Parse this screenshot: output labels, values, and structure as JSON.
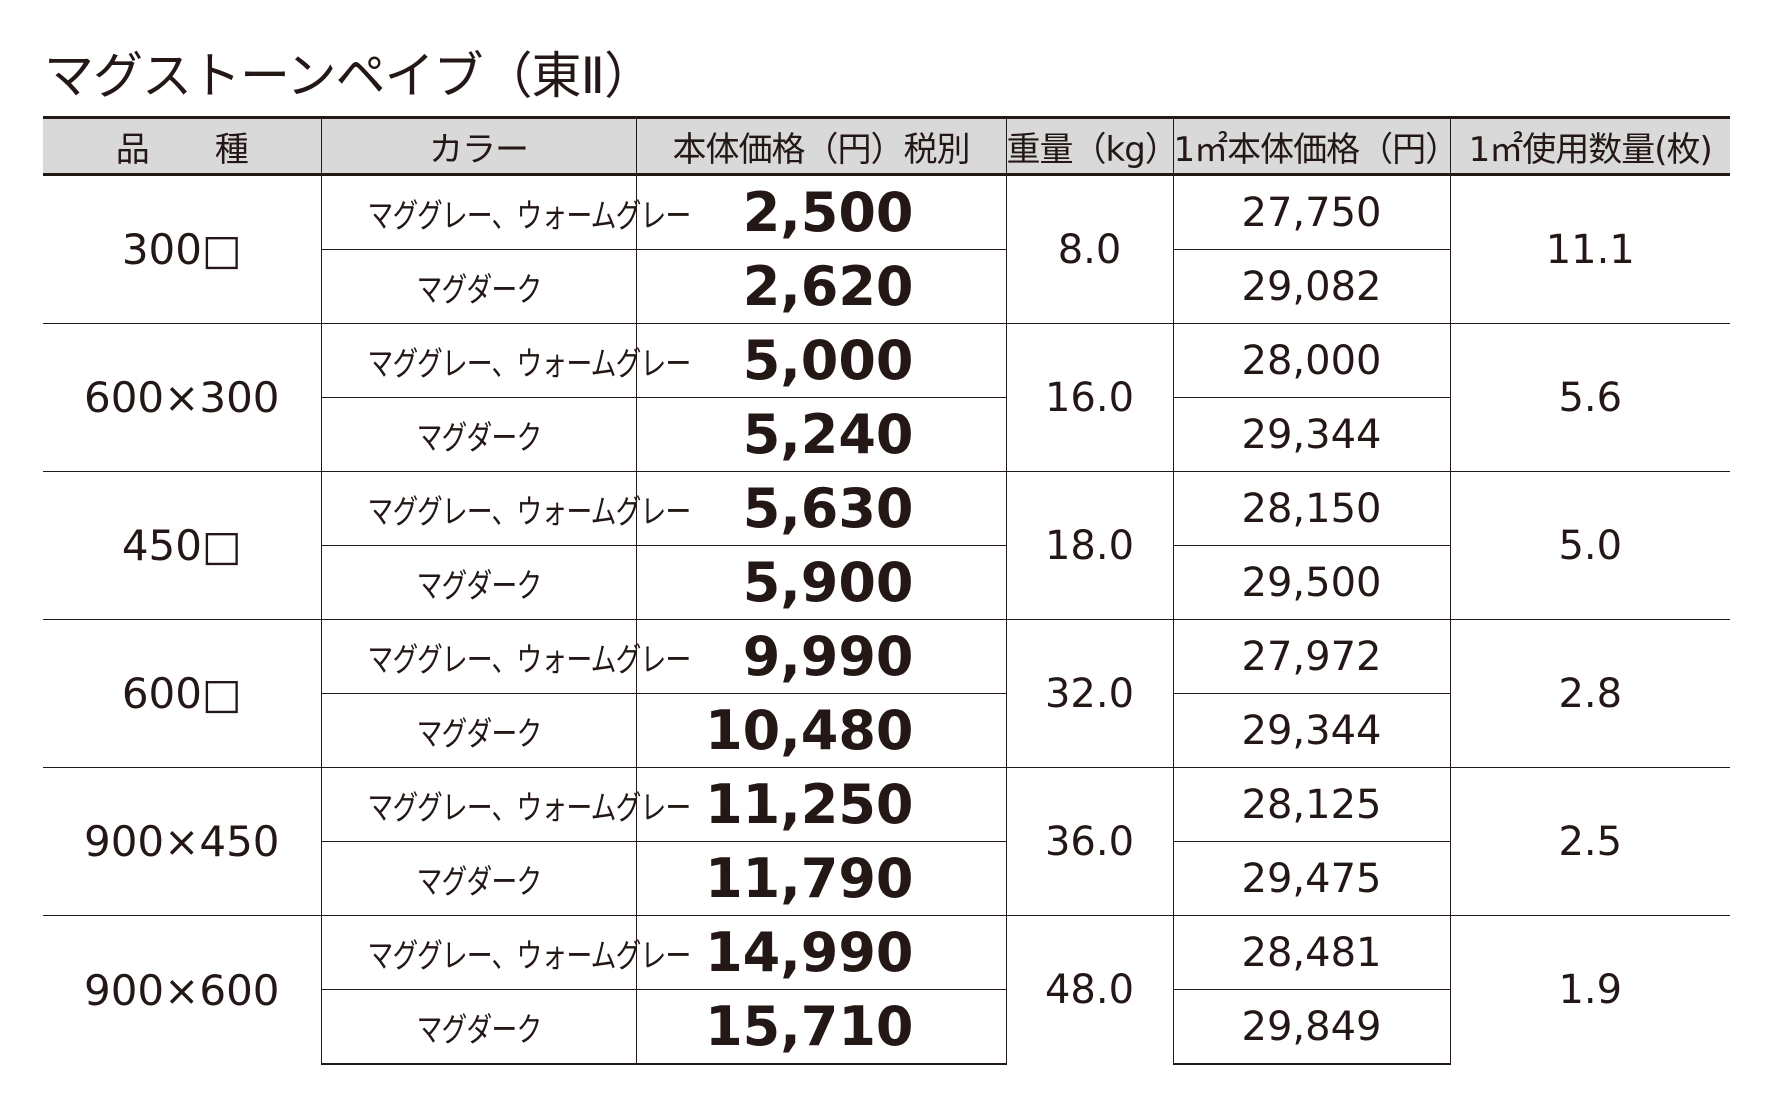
{
  "header": {
    "title": "マグストーンペイブ（東Ⅱ）"
  },
  "table": {
    "headers": [
      "品　　種",
      "カラー",
      "本体価格（円）税別",
      "重量（kg）",
      "1㎡本体価格（円）",
      "1㎡使用数量(枚)"
    ],
    "groups": [
      {
        "size": "300□",
        "weight": "8.0",
        "count": "11.1",
        "rows": [
          {
            "color": "マググレー、ウォームグレー",
            "price": "2,500",
            "per_m2": "27,750"
          },
          {
            "color": "マグダーク",
            "price": "2,620",
            "per_m2": "29,082"
          }
        ]
      },
      {
        "size": "600×300",
        "weight": "16.0",
        "count": "5.6",
        "rows": [
          {
            "color": "マググレー、ウォームグレー",
            "price": "5,000",
            "per_m2": "28,000"
          },
          {
            "color": "マグダーク",
            "price": "5,240",
            "per_m2": "29,344"
          }
        ]
      },
      {
        "size": "450□",
        "weight": "18.0",
        "count": "5.0",
        "rows": [
          {
            "color": "マググレー、ウォームグレー",
            "price": "5,630",
            "per_m2": "28,150"
          },
          {
            "color": "マグダーク",
            "price": "5,900",
            "per_m2": "29,500"
          }
        ]
      },
      {
        "size": "600□",
        "weight": "32.0",
        "count": "2.8",
        "rows": [
          {
            "color": "マググレー、ウォームグレー",
            "price": "9,990",
            "per_m2": "27,972"
          },
          {
            "color": "マグダーク",
            "price": "10,480",
            "per_m2": "29,344"
          }
        ]
      },
      {
        "size": "900×450",
        "weight": "36.0",
        "count": "2.5",
        "rows": [
          {
            "color": "マググレー、ウォームグレー",
            "price": "11,250",
            "per_m2": "28,125"
          },
          {
            "color": "マグダーク",
            "price": "11,790",
            "per_m2": "29,475"
          }
        ]
      },
      {
        "size": "900×600",
        "weight": "48.0",
        "count": "1.9",
        "rows": [
          {
            "color": "マググレー、ウォームグレー",
            "price": "14,990",
            "per_m2": "28,481"
          },
          {
            "color": "マグダーク",
            "price": "15,710",
            "per_m2": "29,849"
          }
        ]
      }
    ]
  }
}
